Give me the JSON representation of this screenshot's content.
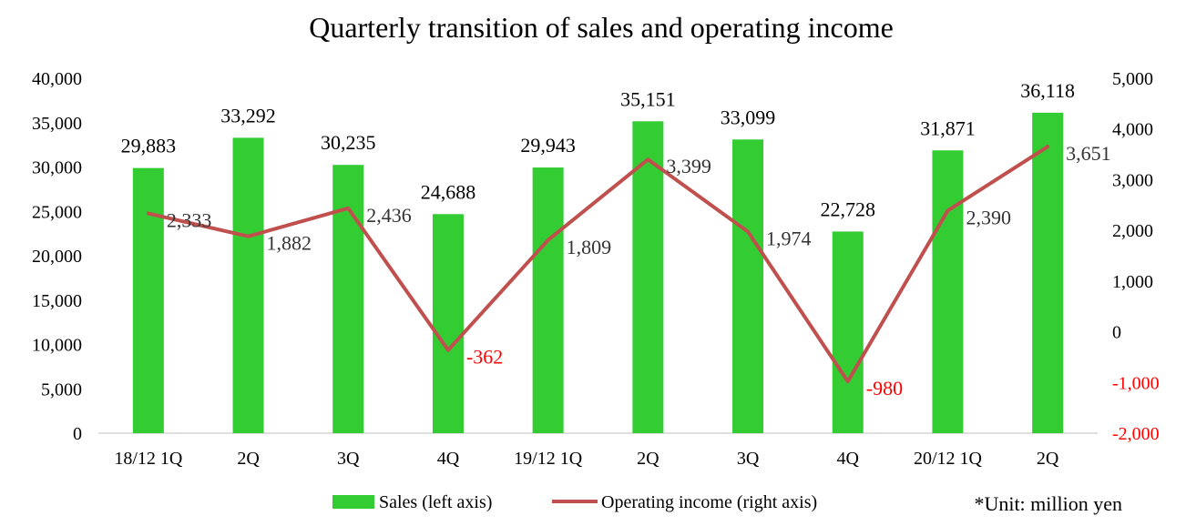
{
  "chart_data": {
    "type": "bar-line",
    "title": "Quarterly transition of sales and operating income",
    "categories": [
      "18/12 1Q",
      "2Q",
      "3Q",
      "4Q",
      "19/12 1Q",
      "2Q",
      "3Q",
      "4Q",
      "20/12 1Q",
      "2Q"
    ],
    "series": [
      {
        "name": "Sales (left axis)",
        "type": "bar",
        "axis": "left",
        "values": [
          29883,
          33292,
          30235,
          24688,
          29943,
          35151,
          33099,
          22728,
          31871,
          36118
        ],
        "labels": [
          "29,883",
          "33,292",
          "30,235",
          "24,688",
          "29,943",
          "35,151",
          "33,099",
          "22,728",
          "31,871",
          "36,118"
        ],
        "color": "#33CC33"
      },
      {
        "name": "Operating income (right axis)",
        "type": "line",
        "axis": "right",
        "values": [
          2333,
          1882,
          2436,
          -362,
          1809,
          3399,
          1974,
          -980,
          2390,
          3651
        ],
        "labels": [
          "2,333",
          "1,882",
          "2,436",
          "-362",
          "1,809",
          "3,399",
          "1,974",
          "-980",
          "2,390",
          "3,651"
        ],
        "color": "#C0504D"
      }
    ],
    "left_axis": {
      "ylim": [
        0,
        40000
      ],
      "ticks": [
        0,
        5000,
        10000,
        15000,
        20000,
        25000,
        30000,
        35000,
        40000
      ],
      "tick_labels": [
        "0",
        "5,000",
        "10,000",
        "15,000",
        "20,000",
        "25,000",
        "30,000",
        "35,000",
        "40,000"
      ]
    },
    "right_axis": {
      "ylim": [
        -2000,
        5000
      ],
      "ticks": [
        -2000,
        -1000,
        0,
        1000,
        2000,
        3000,
        4000,
        5000
      ],
      "tick_labels": [
        "-2,000",
        "-1,000",
        "0",
        "1,000",
        "2,000",
        "3,000",
        "4,000",
        "5,000"
      ]
    },
    "negative_color": "#FF0000",
    "grid": false,
    "legend_position": "bottom",
    "note": "*Unit: million yen"
  }
}
